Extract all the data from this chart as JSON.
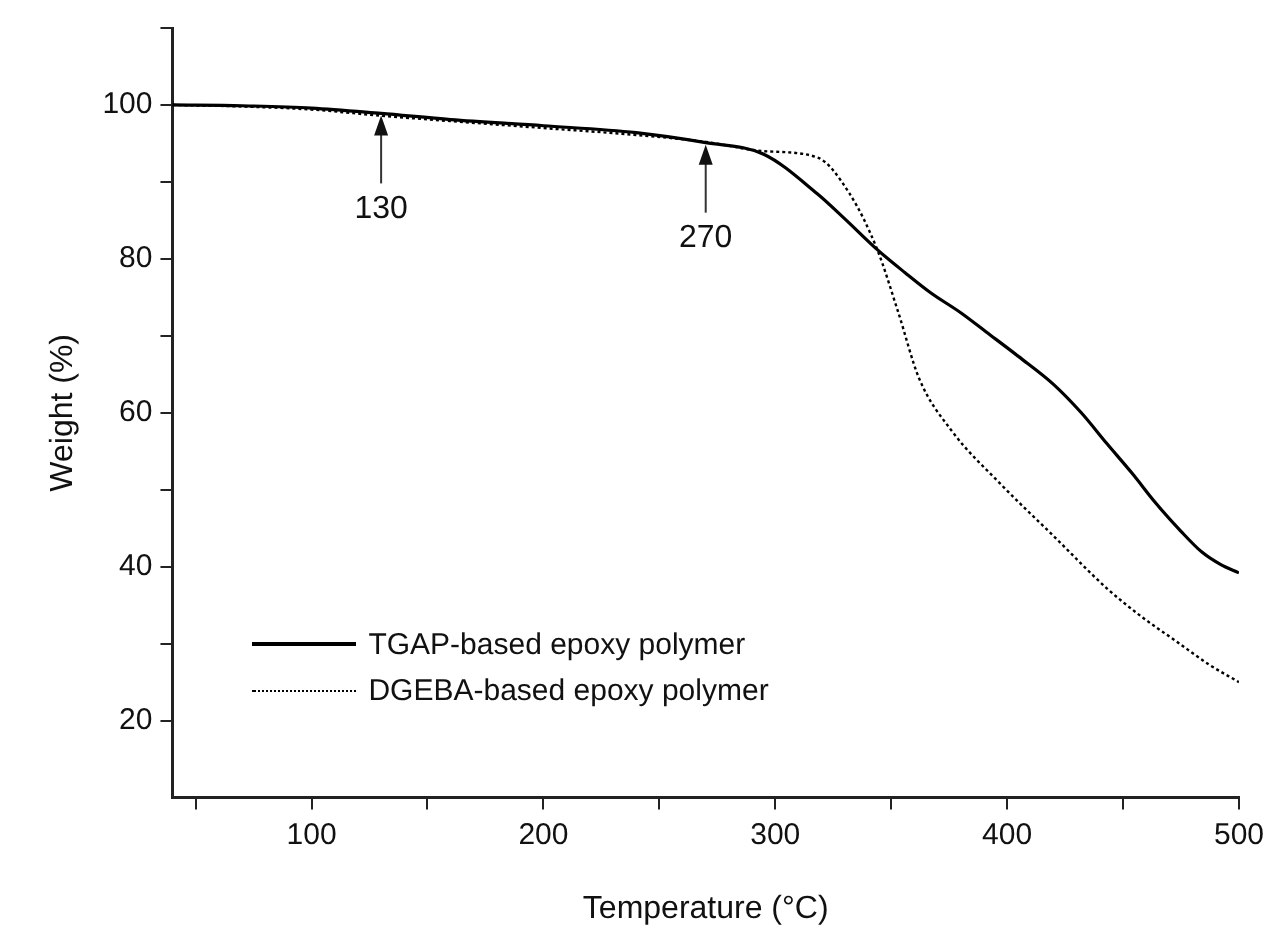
{
  "chart_data": {
    "type": "line",
    "xlabel": "Temperature (°C)",
    "ylabel": "Weight (%)",
    "xlim": [
      40,
      500
    ],
    "xticks": [
      {
        "value": 50,
        "label": null
      },
      100,
      {
        "value": 150,
        "label": null
      },
      200,
      {
        "value": 250,
        "label": null
      },
      300,
      {
        "value": 350,
        "label": null
      },
      400,
      {
        "value": 450,
        "label": null
      },
      500
    ],
    "ylim": [
      10,
      110
    ],
    "yticks": [
      20,
      {
        "value": 30,
        "label": null
      },
      40,
      {
        "value": 50,
        "label": null
      },
      60,
      {
        "value": 70,
        "label": null
      },
      80,
      {
        "value": 90,
        "label": null
      },
      100,
      {
        "value": 110,
        "label": null
      }
    ],
    "grid": false,
    "legend": "bottom left",
    "marker": "none",
    "series": [
      {
        "name": "TGAP-based epoxy polymer",
        "color": "#000000",
        "line_style": "solid",
        "x": [
          40,
          70,
          100,
          130,
          160,
          200,
          240,
          270,
          295,
          318,
          330,
          344,
          356,
          367,
          380,
          391,
          405,
          420,
          432,
          443,
          454,
          464,
          475,
          484,
          492,
          500
        ],
        "values": [
          100,
          99.9,
          99.6,
          98.9,
          98.1,
          97.3,
          96.4,
          95.1,
          93.6,
          88.5,
          85.2,
          81.2,
          78.2,
          75.6,
          73,
          70.5,
          67.3,
          63.7,
          60,
          56,
          52.1,
          48.3,
          44.6,
          41.9,
          40.3,
          39.2
        ]
      },
      {
        "name": "DGEBA-based epoxy polymer",
        "color": "#000000",
        "line_style": "dotted",
        "x": [
          40,
          70,
          100,
          130,
          160,
          200,
          240,
          270,
          295,
          318,
          332,
          344,
          353,
          362,
          376,
          397,
          420,
          443,
          458,
          473,
          487,
          500
        ],
        "values": [
          100,
          99.8,
          99.4,
          98.6,
          97.9,
          97,
          96.1,
          95.2,
          94,
          93.2,
          88.5,
          81.2,
          73.1,
          64.5,
          57.7,
          50.8,
          44,
          37.2,
          33.5,
          30.3,
          27.3,
          25
        ]
      }
    ],
    "annotations": [
      {
        "text": "130",
        "x": 130,
        "y": 98.9
      },
      {
        "text": "270",
        "x": 270,
        "y": 95.1
      }
    ]
  }
}
